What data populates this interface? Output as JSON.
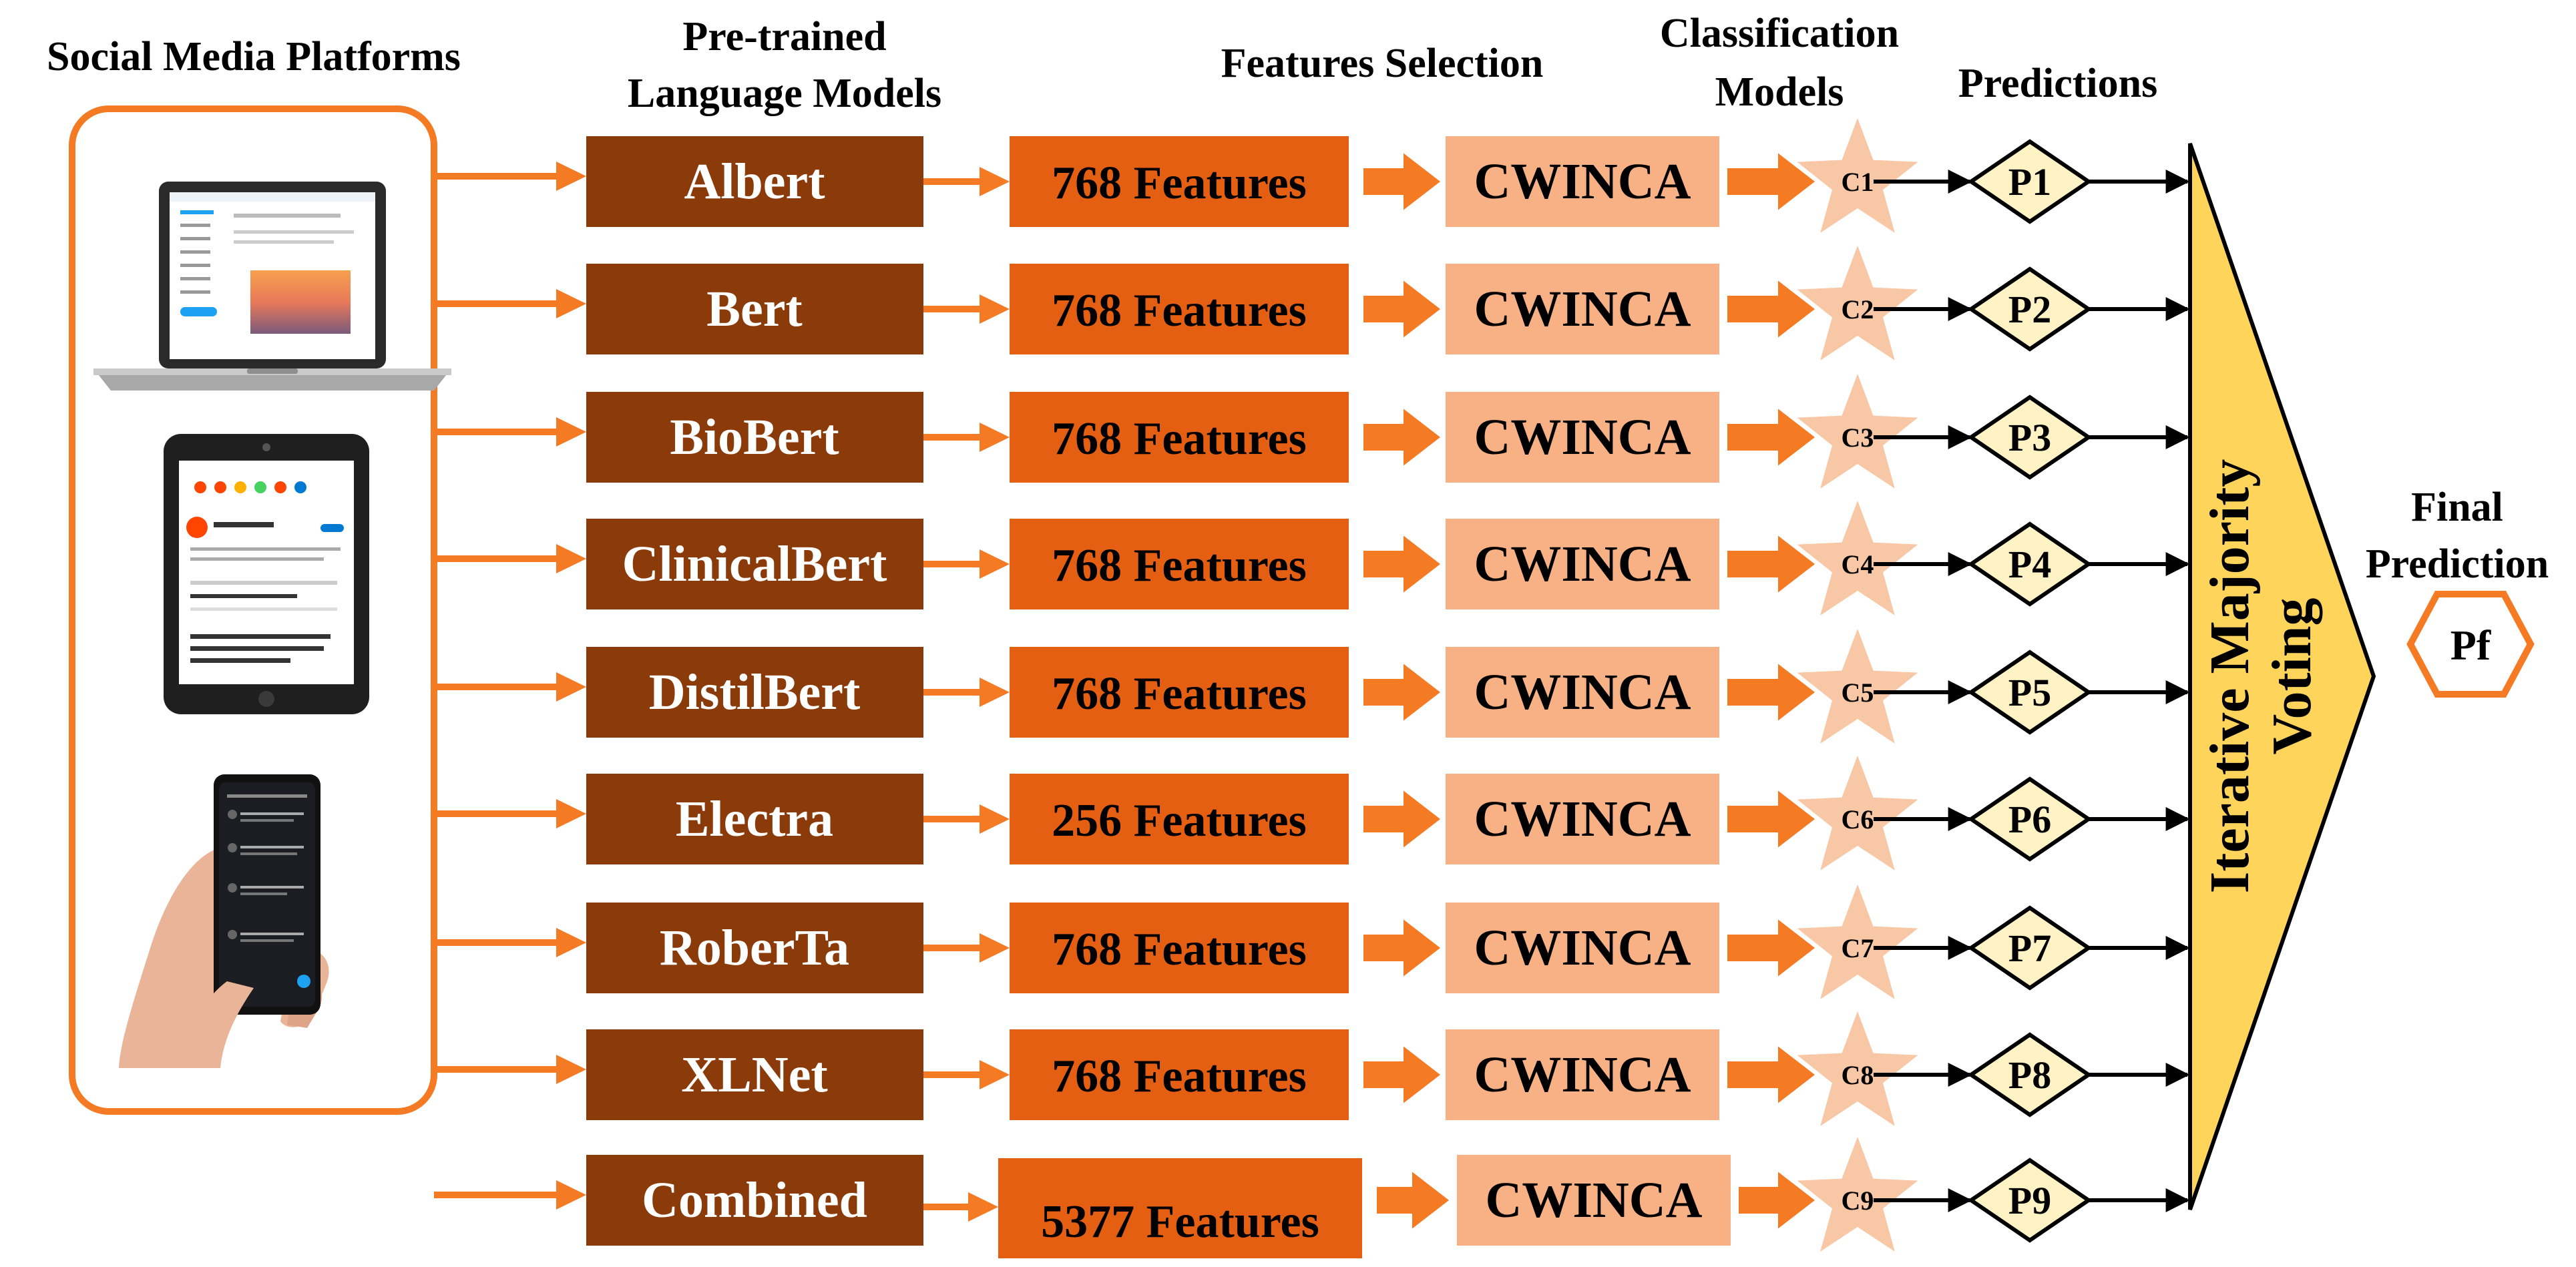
{
  "headers": {
    "platforms": "Social Media Platforms",
    "models_line1": "Pre-trained",
    "models_line2": "Language Models",
    "selection": "Features Selection",
    "classification_line1": "Classification",
    "classification_line2": "Models",
    "predictions": "Predictions",
    "final_line1": "Final",
    "final_line2": "Prediction"
  },
  "voting": {
    "line1": "Iterative Majority",
    "line2": "Voting"
  },
  "final_output": "Pf",
  "rows": [
    {
      "model": "Albert",
      "features": "768 Features",
      "selector": "CWINCA",
      "classifier": "C1",
      "prediction": "P1"
    },
    {
      "model": "Bert",
      "features": "768 Features",
      "selector": "CWINCA",
      "classifier": "C2",
      "prediction": "P2"
    },
    {
      "model": "BioBert",
      "features": "768 Features",
      "selector": "CWINCA",
      "classifier": "C3",
      "prediction": "P3"
    },
    {
      "model": "ClinicalBert",
      "features": "768 Features",
      "selector": "CWINCA",
      "classifier": "C4",
      "prediction": "P4"
    },
    {
      "model": "DistilBert",
      "features": "768 Features",
      "selector": "CWINCA",
      "classifier": "C5",
      "prediction": "P5"
    },
    {
      "model": "Electra",
      "features": "256 Features",
      "selector": "CWINCA",
      "classifier": "C6",
      "prediction": "P6"
    },
    {
      "model": "RoberTa",
      "features": "768 Features",
      "selector": "CWINCA",
      "classifier": "C7",
      "prediction": "P7"
    },
    {
      "model": "XLNet",
      "features": "768 Features",
      "selector": "CWINCA",
      "classifier": "C8",
      "prediction": "P8"
    },
    {
      "model": "Combined",
      "features": "5377 Features",
      "selector": "CWINCA",
      "classifier": "C9",
      "prediction": "P9"
    }
  ],
  "colors": {
    "model_box": "#8B3A0A",
    "feature_box": "#E45F12",
    "selector_box": "#F7B184",
    "star": "#F8C8A6",
    "arrow": "#F47A24",
    "diamond": "#FFF2C4",
    "triangle": "#FFD45A",
    "platform_border": "#F47A24",
    "hexagon_border": "#F47A24"
  },
  "devices": [
    "laptop-icon",
    "tablet-icon",
    "smartphone-icon"
  ]
}
